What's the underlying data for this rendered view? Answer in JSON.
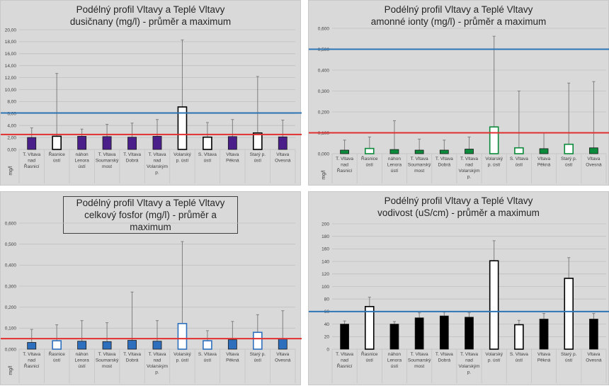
{
  "chart_data": [
    {
      "type": "bar",
      "title": "Podélný profil Vltavy a Teplé Vltavy",
      "subtitle": "dusičnany (mg/l) - průměr a maximum",
      "ylabel": "mg/l",
      "ylim": [
        0,
        20
      ],
      "yticks": [
        "0,00",
        "2,00",
        "4,00",
        "6,00",
        "8,00",
        "10,00",
        "12,00",
        "14,00",
        "16,00",
        "18,00",
        "20,00"
      ],
      "categories": [
        [
          "T. Vltava",
          "nad",
          "Řasnicí"
        ],
        [
          "Řasnice",
          "ústí"
        ],
        [
          "náhon",
          "Lenora",
          "ústí"
        ],
        [
          "T. Vltava",
          "Soumarský",
          "most"
        ],
        [
          "T. Vltava",
          "Dobrá"
        ],
        [
          "T. Vltava",
          "nad",
          "Volarským",
          "p."
        ],
        [
          "Volarský",
          "p. ústí"
        ],
        [
          "S. Vltava",
          "ústí"
        ],
        [
          "Vltava",
          "Pěkná"
        ],
        [
          "Starý p.",
          "ústí"
        ],
        [
          "Vltava",
          "Ovesná"
        ]
      ],
      "series": [
        {
          "name": "průměr",
          "values": [
            2.0,
            2.2,
            2.2,
            2.15,
            2.05,
            2.2,
            7.1,
            2.05,
            2.15,
            2.75,
            2.1
          ]
        },
        {
          "name": "maximum",
          "values": [
            3.6,
            12.7,
            3.4,
            4.2,
            4.4,
            5.0,
            18.3,
            4.5,
            5.0,
            12.2,
            4.9
          ]
        }
      ],
      "hollow": [
        false,
        true,
        false,
        false,
        false,
        false,
        true,
        true,
        false,
        true,
        false
      ],
      "fill_color": "#4b1f8a",
      "hollow_color": "#000000",
      "reference_lines": [
        {
          "value": 6.1,
          "color": "#2e75b6"
        },
        {
          "value": 2.5,
          "color": "#e03030"
        }
      ],
      "boxed_title": false
    },
    {
      "type": "bar",
      "title": "Podélný profil Vltavy a Teplé Vltavy",
      "subtitle": "amonné ionty (mg/l) - průměr a maximum",
      "ylabel": "mg/l",
      "ylim": [
        0,
        0.6
      ],
      "yticks": [
        "0,000",
        "0,100",
        "0,200",
        "0,300",
        "0,400",
        "0,500",
        "0,600"
      ],
      "categories": [
        [
          "T. Vltava",
          "nad",
          "Řasnicí"
        ],
        [
          "Řasnice",
          "ústí"
        ],
        [
          "náhon",
          "Lenora",
          "ústí"
        ],
        [
          "T. Vltava",
          "Soumarský",
          "most"
        ],
        [
          "T. Vltava",
          "Dobrá"
        ],
        [
          "T. Vltava",
          "nad",
          "Volarským",
          "p."
        ],
        [
          "Volarský",
          "p. ústí"
        ],
        [
          "S. Vltava",
          "ústí"
        ],
        [
          "Vltava",
          "Pěkná"
        ],
        [
          "Starý p.",
          "ústí"
        ],
        [
          "Vltava",
          "Ovesná"
        ]
      ],
      "series": [
        {
          "name": "průměr",
          "values": [
            0.017,
            0.025,
            0.02,
            0.017,
            0.017,
            0.022,
            0.128,
            0.028,
            0.024,
            0.045,
            0.028
          ]
        },
        {
          "name": "maximum",
          "values": [
            0.065,
            0.08,
            0.158,
            0.07,
            0.065,
            0.08,
            0.562,
            0.3,
            0.1,
            0.338,
            0.345
          ]
        }
      ],
      "hollow": [
        false,
        true,
        false,
        false,
        false,
        false,
        true,
        true,
        false,
        true,
        false
      ],
      "fill_color": "#0a8a3a",
      "hollow_color": "#0a8a3a",
      "reference_lines": [
        {
          "value": 0.5,
          "color": "#2e75b6"
        },
        {
          "value": 0.1,
          "color": "#e03030"
        }
      ],
      "boxed_title": false
    },
    {
      "type": "bar",
      "title": "Podélný profil Vltavy a Teplé Vltavy",
      "subtitle": "celkový fosfor (mg/l) - průměr a maximum",
      "ylabel": "mg/l",
      "ylim": [
        0,
        0.6
      ],
      "yticks": [
        "0,000",
        "0,100",
        "0,200",
        "0,300",
        "0,400",
        "0,500",
        "0,600"
      ],
      "categories": [
        [
          "T. Vltava",
          "nad",
          "Řasnicí"
        ],
        [
          "Řasnice",
          "ústí"
        ],
        [
          "náhon",
          "Lenora",
          "ústí"
        ],
        [
          "T. Vltava",
          "Soumarský",
          "most"
        ],
        [
          "T. Vltava",
          "Dobrá"
        ],
        [
          "T. Vltava",
          "nad",
          "Volarským",
          "p."
        ],
        [
          "Volarský",
          "p. ústí"
        ],
        [
          "S. Vltava",
          "ústí"
        ],
        [
          "Vltava",
          "Pěkná"
        ],
        [
          "Starý p.",
          "ústí"
        ],
        [
          "Vltava",
          "Ovesná"
        ]
      ],
      "series": [
        {
          "name": "průměr",
          "values": [
            0.032,
            0.04,
            0.038,
            0.036,
            0.042,
            0.038,
            0.122,
            0.04,
            0.045,
            0.08,
            0.048
          ]
        },
        {
          "name": "maximum",
          "values": [
            0.094,
            0.116,
            0.136,
            0.126,
            0.272,
            0.136,
            0.512,
            0.088,
            0.132,
            0.164,
            0.183
          ]
        }
      ],
      "hollow": [
        false,
        true,
        false,
        false,
        false,
        false,
        true,
        true,
        false,
        true,
        false
      ],
      "fill_color": "#2e6fbd",
      "hollow_color": "#2e6fbd",
      "reference_lines": [
        {
          "value": 0.05,
          "color": "#e03030"
        }
      ],
      "boxed_title": true
    },
    {
      "type": "bar",
      "title": "Podélný profil Vltavy a Teplé Vltavy",
      "subtitle": "vodivost (uS/cm) - průměr a maximum",
      "ylabel": "",
      "ylim": [
        0,
        200
      ],
      "yticks": [
        "0",
        "20",
        "40",
        "60",
        "80",
        "100",
        "120",
        "140",
        "160",
        "180",
        "200"
      ],
      "categories": [
        [
          "T. Vltava",
          "nad",
          "Řasnicí"
        ],
        [
          "Řasnice",
          "ústí"
        ],
        [
          "náhon",
          "Lenora",
          "ústí"
        ],
        [
          "T. Vltava",
          "Soumarský",
          "most"
        ],
        [
          "T. Vltava",
          "Dobrá"
        ],
        [
          "T. Vltava",
          "nad",
          "Volarským",
          "p."
        ],
        [
          "Volarský",
          "p. ústí"
        ],
        [
          "S. Vltava",
          "ústí"
        ],
        [
          "Vltava",
          "Pěkná"
        ],
        [
          "Starý p.",
          "ústí"
        ],
        [
          "Vltava",
          "Ovesná"
        ]
      ],
      "series": [
        {
          "name": "průměr",
          "values": [
            40,
            68,
            40,
            50,
            53,
            51,
            141,
            39,
            48,
            113,
            48
          ]
        },
        {
          "name": "maximum",
          "values": [
            45,
            83,
            44,
            58,
            59,
            58,
            173,
            46,
            57,
            146,
            57
          ]
        }
      ],
      "hollow": [
        false,
        true,
        false,
        false,
        false,
        false,
        true,
        true,
        false,
        true,
        false
      ],
      "fill_color": "#000000",
      "hollow_color": "#000000",
      "reference_lines": [
        {
          "value": 60,
          "color": "#2e75b6"
        }
      ],
      "boxed_title": false
    }
  ]
}
